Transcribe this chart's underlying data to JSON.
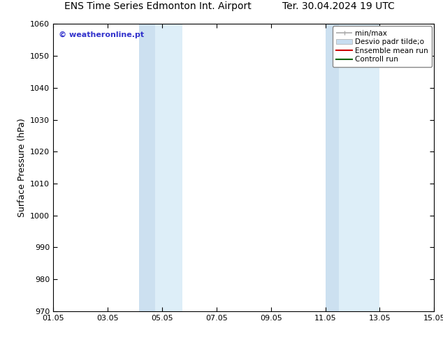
{
  "title_left": "ENS Time Series Edmonton Int. Airport",
  "title_right": "Ter. 30.04.2024 19 UTC",
  "ylabel": "Surface Pressure (hPa)",
  "xlim": [
    1.05,
    15.05
  ],
  "ylim": [
    970,
    1060
  ],
  "yticks": [
    970,
    980,
    990,
    1000,
    1010,
    1020,
    1030,
    1040,
    1050,
    1060
  ],
  "xticks": [
    1.05,
    3.05,
    5.05,
    7.05,
    9.05,
    11.05,
    13.05,
    15.05
  ],
  "xticklabels": [
    "01.05",
    "03.05",
    "05.05",
    "07.05",
    "09.05",
    "11.05",
    "13.05",
    "15.05"
  ],
  "shaded_bands": [
    {
      "xmin": 4.2,
      "xmax": 4.8,
      "color": "#cce0f0"
    },
    {
      "xmin": 4.8,
      "xmax": 5.8,
      "color": "#ddeef8"
    },
    {
      "xmin": 11.05,
      "xmax": 11.55,
      "color": "#cce0f0"
    },
    {
      "xmin": 11.55,
      "xmax": 13.05,
      "color": "#ddeef8"
    }
  ],
  "watermark_text": "© weatheronline.pt",
  "watermark_color": "#3333cc",
  "legend_entries": [
    {
      "label": "min/max",
      "color": "#aaaaaa",
      "lw": 1.2,
      "type": "line_caps"
    },
    {
      "label": "Desvio padr tilde;o",
      "color": "#c8ddf0",
      "lw": 6,
      "type": "patch"
    },
    {
      "label": "Ensemble mean run",
      "color": "#cc0000",
      "lw": 1.5,
      "type": "line"
    },
    {
      "label": "Controll run",
      "color": "#006600",
      "lw": 1.5,
      "type": "line"
    }
  ],
  "bg_color": "#ffffff",
  "plot_bg_color": "#ffffff",
  "title_fontsize": 10,
  "axis_label_fontsize": 9,
  "tick_fontsize": 8,
  "legend_fontsize": 7.5
}
